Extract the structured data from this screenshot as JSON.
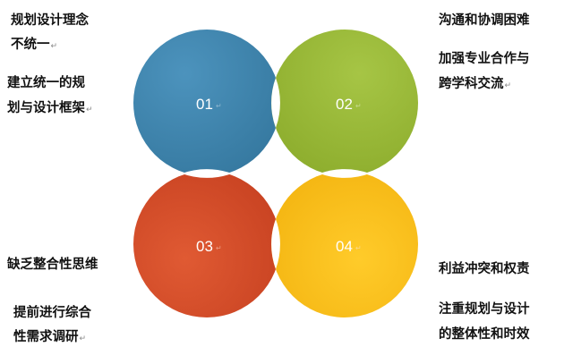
{
  "diagram": {
    "items": [
      {
        "number": "01",
        "color": "#3F84AE"
      },
      {
        "number": "02",
        "color": "#98B834"
      },
      {
        "number": "03",
        "color": "#D44A28"
      },
      {
        "number": "04",
        "color": "#F6BF18"
      }
    ],
    "labels": {
      "tl_problem_1": "规划设计理念",
      "tl_problem_2": "不统一",
      "tl_solution_1": "建立统一的规",
      "tl_solution_2": "划与设计框架",
      "tr_problem": "沟通和协调困难",
      "tr_solution_1": "加强专业合作与",
      "tr_solution_2": "跨学科交流",
      "bl_problem": "缺乏整合性思维",
      "bl_solution_1": "提前进行综合",
      "bl_solution_2": "性需求调研",
      "br_problem": "利益冲突和权责",
      "br_solution_1": "注重规划与设计",
      "br_solution_2": "的整体性和时效"
    },
    "paragraph_mark": "↵"
  }
}
